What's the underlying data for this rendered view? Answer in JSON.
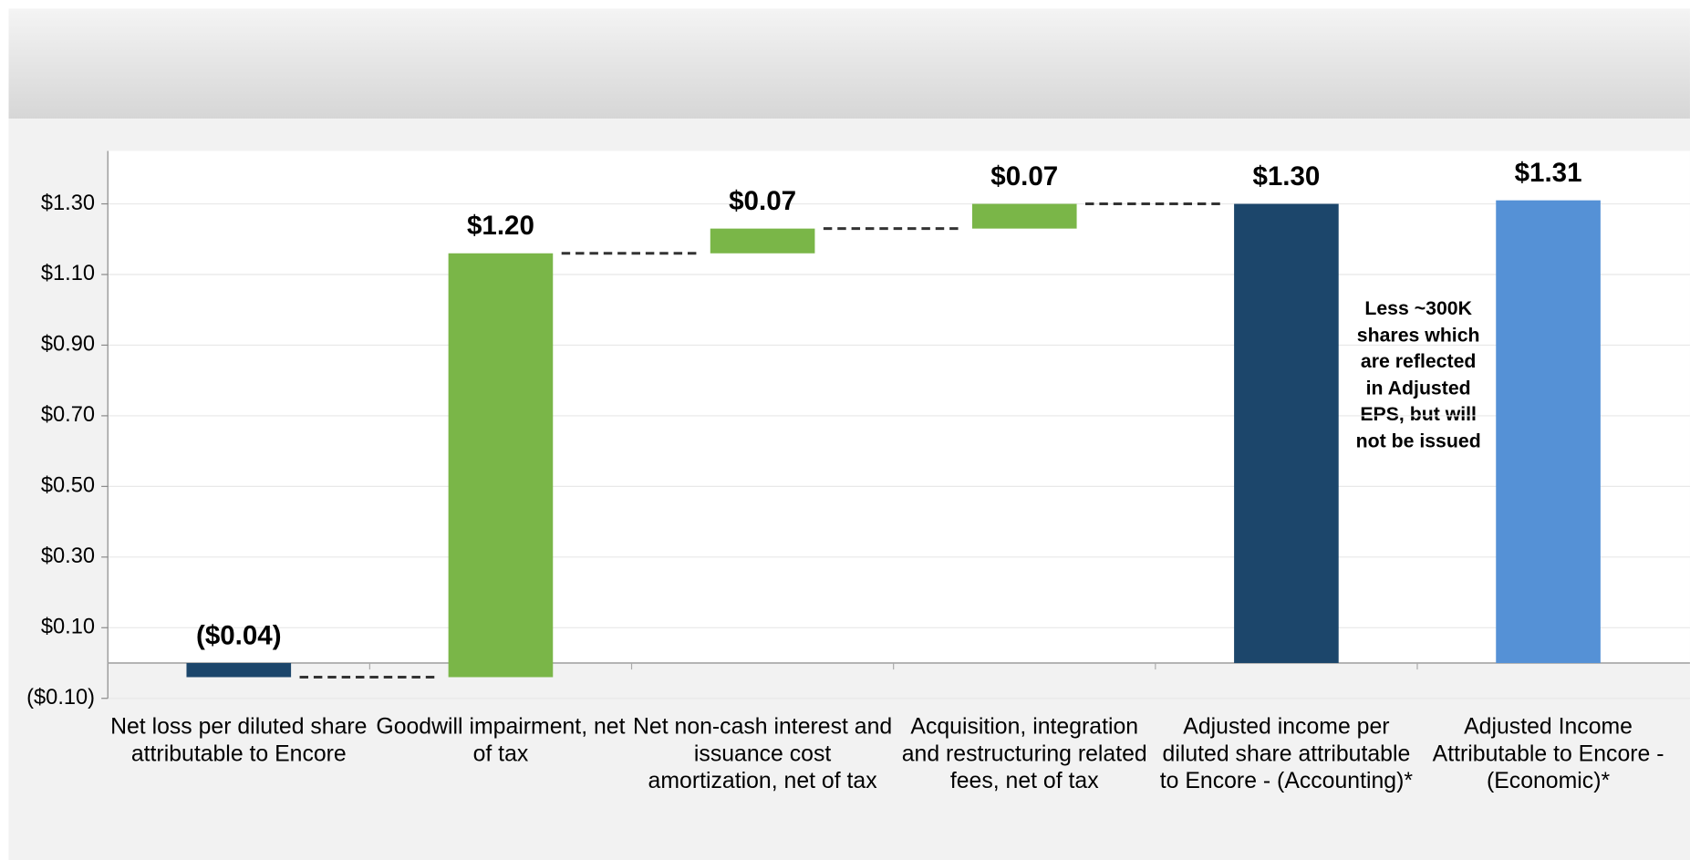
{
  "chart_data": {
    "type": "waterfall",
    "categories": [
      "Net loss per diluted share attributable to Encore",
      "Goodwill impairment, net of tax",
      "Net non-cash interest and issuance cost amortization, net of tax",
      "Acquisition, integration and restructuring related fees, net of tax",
      "Adjusted income per diluted share attributable to Encore - (Accounting)*",
      "Adjusted Income Attributable to Encore - (Economic)*"
    ],
    "values": [
      -0.04,
      1.2,
      0.07,
      0.07,
      1.3,
      1.31
    ],
    "value_labels": [
      "($0.04)",
      "$1.20",
      "$0.07",
      "$0.07",
      "$1.30",
      "$1.31"
    ],
    "measure": [
      "relative",
      "relative",
      "relative",
      "relative",
      "total",
      "total"
    ],
    "colors": [
      "#1c466b",
      "#7ab648",
      "#7ab648",
      "#7ab648",
      "#1c466b",
      "#5591d6"
    ],
    "ylim": [
      -0.1,
      1.45
    ],
    "yticks": [
      {
        "value": -0.1,
        "label": "($0.10)"
      },
      {
        "value": 0.1,
        "label": "$0.10"
      },
      {
        "value": 0.3,
        "label": "$0.30"
      },
      {
        "value": 0.5,
        "label": "$0.50"
      },
      {
        "value": 0.7,
        "label": "$0.70"
      },
      {
        "value": 0.9,
        "label": "$0.90"
      },
      {
        "value": 1.1,
        "label": "$1.10"
      },
      {
        "value": 1.3,
        "label": "$1.30"
      }
    ],
    "grid": true,
    "annotation": "Less ~300K shares which are reflected in Adjusted EPS, but will not be issued"
  }
}
